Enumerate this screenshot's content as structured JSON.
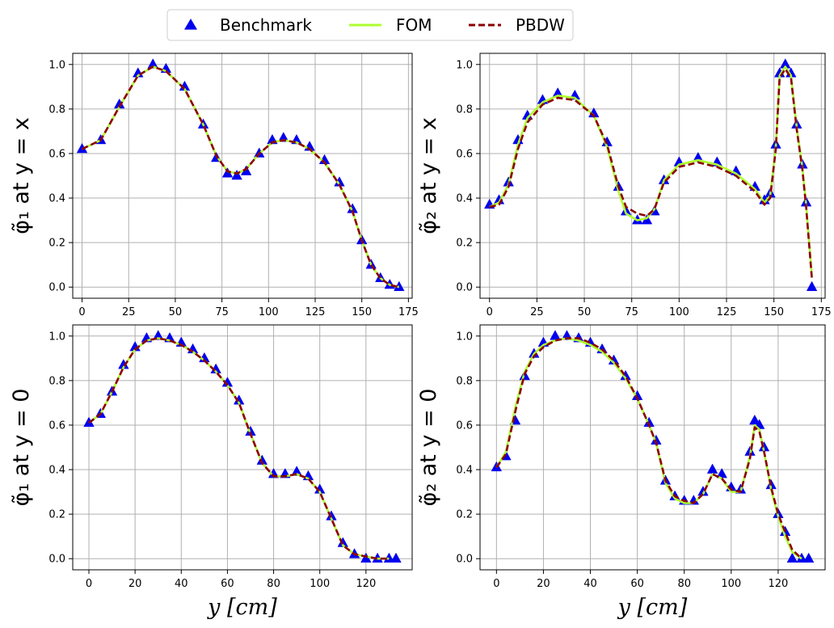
{
  "legend": {
    "placement": "top-center",
    "entries": [
      {
        "label": "Benchmark",
        "marker": "triangle",
        "color": "#0000ee"
      },
      {
        "label": "FOM",
        "style": "solid",
        "color": "#adff2f"
      },
      {
        "label": "PBDW",
        "style": "dashed",
        "color": "#8b0000"
      }
    ]
  },
  "chart_data": [
    {
      "type": "line",
      "ylabel": "φ̃₁ at y = x",
      "xlabel": "",
      "xlim": [
        -5,
        177
      ],
      "ylim": [
        -0.05,
        1.05
      ],
      "xticks": [
        0,
        25,
        50,
        75,
        100,
        125,
        150,
        175
      ],
      "yticks": [
        0.0,
        0.2,
        0.4,
        0.6,
        0.8,
        1.0
      ],
      "grid": true,
      "series": [
        {
          "name": "Benchmark",
          "x": [
            0,
            10,
            20,
            30,
            38,
            45,
            55,
            65,
            72,
            78,
            83,
            88,
            95,
            102,
            108,
            115,
            122,
            130,
            138,
            145,
            150,
            155,
            160,
            165,
            170
          ],
          "y": [
            0.62,
            0.66,
            0.82,
            0.96,
            1.0,
            0.98,
            0.9,
            0.73,
            0.58,
            0.51,
            0.5,
            0.52,
            0.6,
            0.66,
            0.67,
            0.66,
            0.63,
            0.57,
            0.47,
            0.35,
            0.21,
            0.1,
            0.04,
            0.01,
            0.0
          ]
        },
        {
          "name": "FOM",
          "x": [
            0,
            10,
            20,
            30,
            38,
            45,
            55,
            65,
            72,
            78,
            83,
            88,
            95,
            102,
            108,
            115,
            122,
            130,
            138,
            145,
            150,
            155,
            160,
            165,
            170
          ],
          "y": [
            0.62,
            0.66,
            0.81,
            0.95,
            0.99,
            0.97,
            0.89,
            0.73,
            0.59,
            0.52,
            0.51,
            0.53,
            0.6,
            0.65,
            0.66,
            0.65,
            0.62,
            0.56,
            0.46,
            0.34,
            0.21,
            0.1,
            0.04,
            0.01,
            0.0
          ]
        },
        {
          "name": "PBDW",
          "x": [
            0,
            10,
            20,
            30,
            38,
            45,
            55,
            65,
            72,
            78,
            83,
            88,
            95,
            102,
            108,
            115,
            122,
            130,
            138,
            145,
            150,
            155,
            160,
            165,
            170
          ],
          "y": [
            0.62,
            0.66,
            0.81,
            0.95,
            0.99,
            0.97,
            0.89,
            0.73,
            0.59,
            0.52,
            0.51,
            0.53,
            0.6,
            0.65,
            0.66,
            0.65,
            0.62,
            0.56,
            0.46,
            0.34,
            0.21,
            0.1,
            0.04,
            0.01,
            0.0
          ]
        }
      ]
    },
    {
      "type": "line",
      "ylabel": "φ̃₂ at y = x",
      "xlabel": "",
      "xlim": [
        -5,
        177
      ],
      "ylim": [
        -0.05,
        1.05
      ],
      "xticks": [
        0,
        25,
        50,
        75,
        100,
        125,
        150,
        175
      ],
      "yticks": [
        0.0,
        0.2,
        0.4,
        0.6,
        0.8,
        1.0
      ],
      "grid": true,
      "series": [
        {
          "name": "Benchmark",
          "x": [
            0,
            5,
            10,
            15,
            20,
            28,
            36,
            45,
            55,
            62,
            68,
            72,
            78,
            83,
            87,
            92,
            100,
            110,
            120,
            130,
            140,
            145,
            148,
            151,
            153,
            156,
            159,
            162,
            165,
            167,
            170
          ],
          "y": [
            0.37,
            0.39,
            0.47,
            0.66,
            0.77,
            0.84,
            0.87,
            0.86,
            0.78,
            0.65,
            0.45,
            0.34,
            0.3,
            0.3,
            0.34,
            0.48,
            0.56,
            0.58,
            0.56,
            0.52,
            0.45,
            0.39,
            0.42,
            0.64,
            0.96,
            1.0,
            0.96,
            0.73,
            0.55,
            0.38,
            0.0
          ]
        },
        {
          "name": "FOM",
          "x": [
            0,
            5,
            10,
            15,
            20,
            28,
            36,
            45,
            55,
            62,
            68,
            72,
            78,
            83,
            87,
            92,
            100,
            110,
            120,
            130,
            140,
            145,
            148,
            151,
            153,
            156,
            159,
            162,
            165,
            167,
            170
          ],
          "y": [
            0.36,
            0.38,
            0.46,
            0.64,
            0.76,
            0.83,
            0.86,
            0.85,
            0.77,
            0.63,
            0.43,
            0.33,
            0.3,
            0.31,
            0.35,
            0.48,
            0.55,
            0.57,
            0.55,
            0.51,
            0.44,
            0.38,
            0.41,
            0.63,
            0.95,
            0.99,
            0.95,
            0.72,
            0.54,
            0.37,
            0.05
          ]
        },
        {
          "name": "PBDW",
          "x": [
            0,
            5,
            10,
            15,
            20,
            28,
            36,
            45,
            55,
            62,
            68,
            72,
            78,
            83,
            87,
            92,
            100,
            110,
            120,
            130,
            140,
            145,
            148,
            151,
            153,
            156,
            159,
            162,
            165,
            167,
            170
          ],
          "y": [
            0.36,
            0.37,
            0.45,
            0.62,
            0.74,
            0.82,
            0.85,
            0.84,
            0.77,
            0.64,
            0.45,
            0.36,
            0.33,
            0.32,
            0.35,
            0.47,
            0.54,
            0.56,
            0.54,
            0.5,
            0.43,
            0.37,
            0.4,
            0.62,
            0.94,
            0.98,
            0.94,
            0.71,
            0.53,
            0.36,
            0.04
          ]
        }
      ]
    },
    {
      "type": "line",
      "ylabel": "φ̃₁ at y = 0",
      "xlabel": "y [cm]",
      "xlim": [
        -7,
        140
      ],
      "ylim": [
        -0.05,
        1.05
      ],
      "xticks": [
        0,
        20,
        40,
        60,
        80,
        100,
        120
      ],
      "yticks": [
        0.0,
        0.2,
        0.4,
        0.6,
        0.8,
        1.0
      ],
      "grid": true,
      "series": [
        {
          "name": "Benchmark",
          "x": [
            0,
            5,
            10,
            15,
            20,
            25,
            30,
            35,
            40,
            45,
            50,
            55,
            60,
            65,
            70,
            75,
            80,
            85,
            90,
            95,
            100,
            105,
            110,
            115,
            120,
            125,
            130,
            133
          ],
          "y": [
            0.61,
            0.65,
            0.75,
            0.87,
            0.95,
            0.99,
            1.0,
            0.99,
            0.97,
            0.94,
            0.9,
            0.85,
            0.79,
            0.71,
            0.57,
            0.44,
            0.38,
            0.38,
            0.39,
            0.37,
            0.31,
            0.19,
            0.07,
            0.02,
            0.0,
            0.0,
            0.0,
            0.0
          ]
        },
        {
          "name": "FOM",
          "x": [
            0,
            5,
            10,
            15,
            20,
            25,
            30,
            35,
            40,
            45,
            50,
            55,
            60,
            65,
            70,
            75,
            80,
            85,
            90,
            95,
            100,
            105,
            110,
            115,
            120,
            125,
            130
          ],
          "y": [
            0.61,
            0.65,
            0.75,
            0.86,
            0.94,
            0.98,
            0.99,
            0.98,
            0.96,
            0.93,
            0.89,
            0.84,
            0.78,
            0.7,
            0.56,
            0.43,
            0.37,
            0.37,
            0.38,
            0.36,
            0.3,
            0.18,
            0.06,
            0.02,
            0.01,
            0.0,
            0.0
          ]
        },
        {
          "name": "PBDW",
          "x": [
            0,
            5,
            10,
            15,
            20,
            25,
            30,
            35,
            40,
            45,
            50,
            55,
            60,
            65,
            70,
            75,
            80,
            85,
            90,
            95,
            100,
            105,
            110,
            115,
            120,
            125,
            130
          ],
          "y": [
            0.61,
            0.65,
            0.75,
            0.86,
            0.94,
            0.98,
            0.99,
            0.98,
            0.96,
            0.93,
            0.89,
            0.84,
            0.78,
            0.7,
            0.56,
            0.43,
            0.37,
            0.37,
            0.38,
            0.36,
            0.3,
            0.18,
            0.06,
            0.02,
            0.01,
            0.0,
            0.0
          ]
        }
      ]
    },
    {
      "type": "line",
      "ylabel": "φ̃₂ at y = 0",
      "xlabel": "y [cm]",
      "xlim": [
        -7,
        140
      ],
      "ylim": [
        -0.05,
        1.05
      ],
      "xticks": [
        0,
        20,
        40,
        60,
        80,
        100,
        120
      ],
      "yticks": [
        0.0,
        0.2,
        0.4,
        0.6,
        0.8,
        1.0
      ],
      "grid": true,
      "series": [
        {
          "name": "Benchmark",
          "x": [
            0,
            4,
            8,
            12,
            16,
            20,
            25,
            30,
            35,
            40,
            45,
            50,
            55,
            60,
            65,
            68,
            72,
            76,
            80,
            84,
            88,
            92,
            96,
            100,
            104,
            108,
            110,
            112,
            114,
            117,
            120,
            123,
            126,
            130,
            133
          ],
          "y": [
            0.41,
            0.46,
            0.62,
            0.82,
            0.92,
            0.97,
            1.0,
            1.0,
            0.99,
            0.97,
            0.94,
            0.89,
            0.82,
            0.73,
            0.61,
            0.53,
            0.35,
            0.28,
            0.26,
            0.26,
            0.3,
            0.4,
            0.38,
            0.32,
            0.31,
            0.48,
            0.62,
            0.6,
            0.5,
            0.33,
            0.2,
            0.12,
            0.0,
            0.0,
            0.0
          ]
        },
        {
          "name": "FOM",
          "x": [
            0,
            4,
            8,
            12,
            16,
            20,
            25,
            30,
            35,
            40,
            45,
            50,
            55,
            60,
            65,
            68,
            72,
            76,
            80,
            84,
            88,
            92,
            96,
            100,
            104,
            108,
            110,
            112,
            114,
            117,
            120,
            123,
            126,
            130
          ],
          "y": [
            0.41,
            0.48,
            0.68,
            0.84,
            0.92,
            0.96,
            0.98,
            0.99,
            0.98,
            0.96,
            0.93,
            0.88,
            0.81,
            0.72,
            0.6,
            0.52,
            0.34,
            0.27,
            0.25,
            0.25,
            0.29,
            0.38,
            0.36,
            0.3,
            0.3,
            0.46,
            0.6,
            0.58,
            0.48,
            0.31,
            0.19,
            0.1,
            0.03,
            0.0
          ]
        },
        {
          "name": "PBDW",
          "x": [
            0,
            4,
            8,
            12,
            16,
            20,
            25,
            30,
            35,
            40,
            45,
            50,
            55,
            60,
            65,
            68,
            72,
            76,
            80,
            84,
            88,
            92,
            96,
            100,
            104,
            108,
            110,
            112,
            114,
            117,
            120,
            123,
            126,
            130
          ],
          "y": [
            0.41,
            0.47,
            0.66,
            0.83,
            0.91,
            0.95,
            0.98,
            0.99,
            0.99,
            0.97,
            0.94,
            0.89,
            0.82,
            0.72,
            0.6,
            0.52,
            0.35,
            0.28,
            0.26,
            0.25,
            0.29,
            0.38,
            0.36,
            0.31,
            0.3,
            0.45,
            0.59,
            0.57,
            0.48,
            0.32,
            0.2,
            0.12,
            0.04,
            0.0
          ]
        }
      ]
    }
  ]
}
